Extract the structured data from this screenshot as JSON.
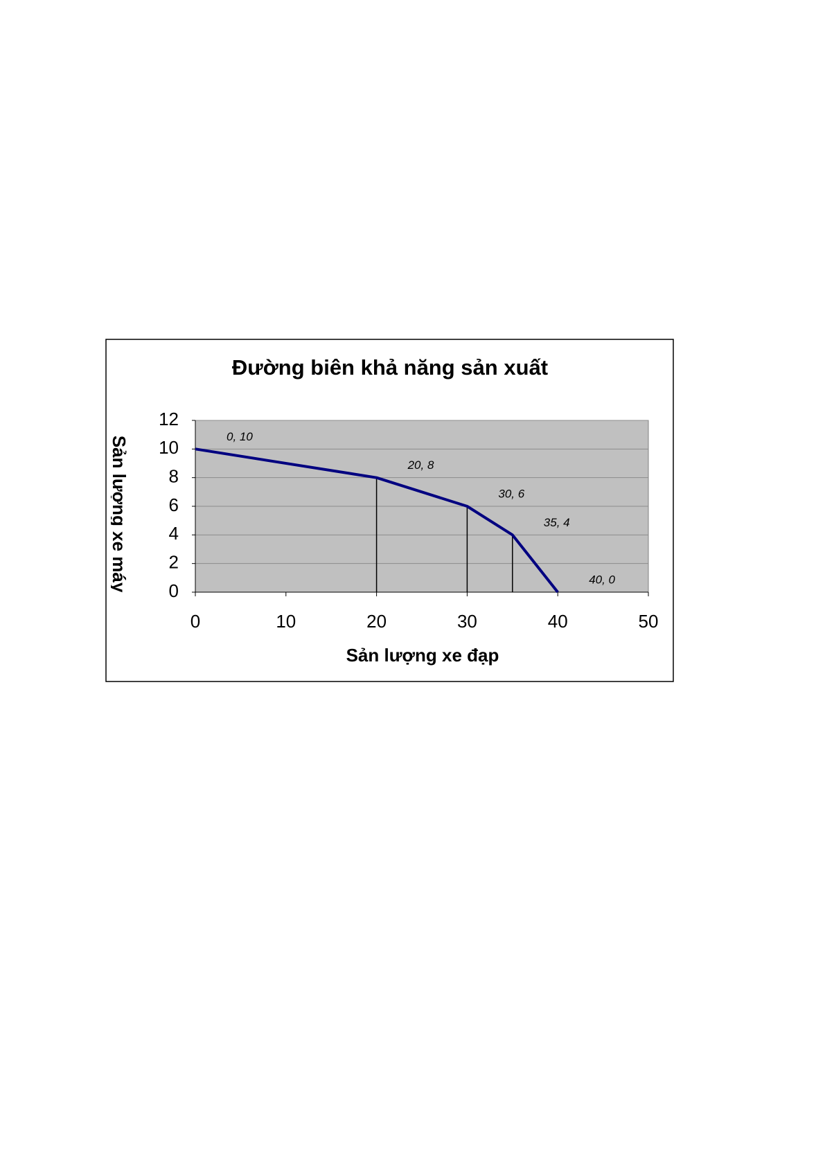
{
  "chart_data": {
    "type": "line",
    "title": "Đường biên khả năng sản xuất",
    "x_label": "Sản lượng xe đạp",
    "y_label": "Sản lượng xe máy",
    "x": [
      0,
      20,
      30,
      35,
      40
    ],
    "series": [
      {
        "color": "#000080",
        "values": [
          10,
          8,
          6,
          4,
          0
        ],
        "value_labels": [
          "0, 10",
          "20, 8",
          "30, 6",
          "35, 4",
          "40, 0"
        ]
      }
    ],
    "drop_lines": true,
    "xlim": [
      0,
      50
    ],
    "xticks": [
      0,
      10,
      20,
      30,
      40,
      50
    ],
    "ylim": [
      0,
      12
    ],
    "yticks": [
      0,
      2,
      4,
      6,
      8,
      10,
      12
    ],
    "grid": true,
    "plot_background": "#c0c0c0"
  }
}
